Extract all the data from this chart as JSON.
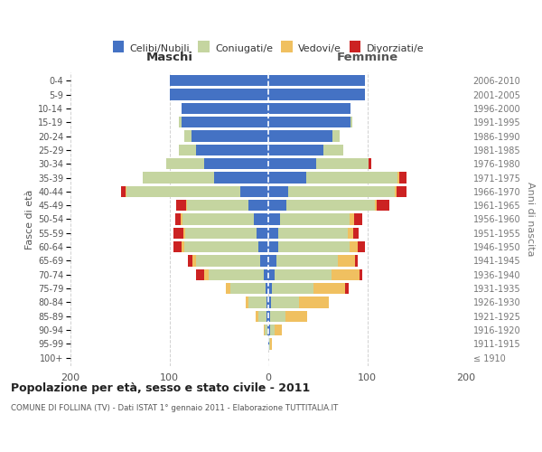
{
  "age_groups": [
    "100+",
    "95-99",
    "90-94",
    "85-89",
    "80-84",
    "75-79",
    "70-74",
    "65-69",
    "60-64",
    "55-59",
    "50-54",
    "45-49",
    "40-44",
    "35-39",
    "30-34",
    "25-29",
    "20-24",
    "15-19",
    "10-14",
    "5-9",
    "0-4"
  ],
  "birth_years": [
    "≤ 1910",
    "1911-1915",
    "1916-1920",
    "1921-1925",
    "1926-1930",
    "1931-1935",
    "1936-1940",
    "1941-1945",
    "1946-1950",
    "1951-1955",
    "1956-1960",
    "1961-1965",
    "1966-1970",
    "1971-1975",
    "1976-1980",
    "1981-1985",
    "1986-1990",
    "1991-1995",
    "1996-2000",
    "2001-2005",
    "2006-2010"
  ],
  "male_celibe": [
    0,
    0,
    1,
    2,
    2,
    3,
    5,
    8,
    10,
    12,
    15,
    20,
    28,
    55,
    65,
    73,
    78,
    88,
    88,
    100,
    100
  ],
  "male_coniugato": [
    0,
    0,
    3,
    8,
    18,
    35,
    55,
    65,
    75,
    72,
    72,
    62,
    115,
    72,
    38,
    17,
    7,
    2,
    0,
    0,
    0
  ],
  "male_vedovo": [
    0,
    0,
    1,
    3,
    3,
    5,
    5,
    4,
    3,
    2,
    2,
    1,
    1,
    0,
    0,
    0,
    0,
    0,
    0,
    0,
    0
  ],
  "male_divorziato": [
    0,
    0,
    0,
    0,
    0,
    0,
    8,
    4,
    8,
    10,
    5,
    10,
    5,
    0,
    0,
    0,
    0,
    0,
    0,
    0,
    0
  ],
  "female_nubile": [
    0,
    1,
    2,
    2,
    3,
    4,
    6,
    8,
    10,
    10,
    12,
    18,
    20,
    38,
    48,
    56,
    65,
    83,
    83,
    98,
    98
  ],
  "female_coniugata": [
    0,
    1,
    4,
    15,
    28,
    42,
    58,
    62,
    72,
    70,
    70,
    90,
    108,
    93,
    53,
    20,
    7,
    2,
    0,
    0,
    0
  ],
  "female_vedova": [
    0,
    2,
    8,
    22,
    30,
    32,
    28,
    18,
    8,
    6,
    5,
    2,
    2,
    1,
    0,
    0,
    0,
    0,
    0,
    0,
    0
  ],
  "female_divorziata": [
    0,
    0,
    0,
    0,
    0,
    3,
    3,
    2,
    8,
    5,
    8,
    12,
    10,
    8,
    3,
    0,
    0,
    0,
    0,
    0,
    0
  ],
  "colors": {
    "celibe": "#4472C4",
    "coniugato": "#C5D5A0",
    "vedovo": "#F0C060",
    "divorziato": "#CC2222"
  },
  "title": "Popolazione per età, sesso e stato civile - 2011",
  "subtitle": "COMUNE DI FOLLINA (TV) - Dati ISTAT 1° gennaio 2011 - Elaborazione TUTTITALIA.IT",
  "xlabel_left": "Maschi",
  "xlabel_right": "Femmine",
  "ylabel_left": "Fasce di età",
  "ylabel_right": "Anni di nascita",
  "xlim": 200,
  "legend_labels": [
    "Celibi/Nubili",
    "Coniugati/e",
    "Vedovi/e",
    "Divorziati/e"
  ],
  "background_color": "#ffffff",
  "grid_color": "#cccccc"
}
